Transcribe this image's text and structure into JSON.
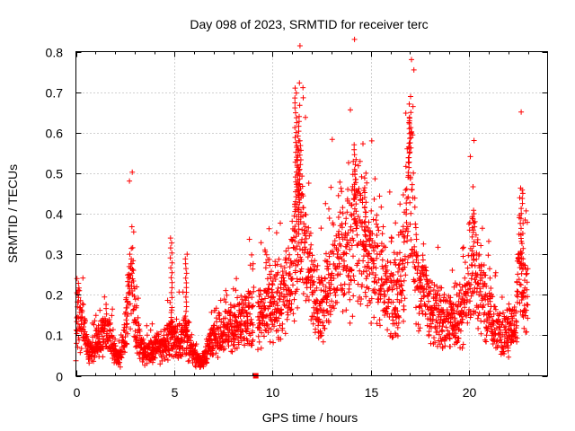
{
  "chart_data": {
    "type": "scatter",
    "title": "Day 098 of 2023, SRMTID for receiver terc",
    "xlabel": "GPS time / hours",
    "ylabel": "SRMTID / TECUs",
    "xlim": [
      0,
      24
    ],
    "ylim": [
      0,
      0.8
    ],
    "x_ticks": [
      0,
      5,
      10,
      15,
      20
    ],
    "y_ticks": [
      0,
      0.1,
      0.2,
      0.3,
      0.4,
      0.5,
      0.6,
      0.7,
      0.8
    ],
    "x_tick_labels": [
      "0",
      "5",
      "10",
      "15",
      "20"
    ],
    "y_tick_labels": [
      "0",
      "0.1",
      "0.2",
      "0.3",
      "0.4",
      "0.5",
      "0.6",
      "0.7",
      "0.8"
    ],
    "grid": true,
    "marker": "+",
    "series_color": "#ff0000",
    "data_gap_marker": {
      "x": 9.15,
      "y": 0.0
    },
    "envelope": [
      [
        0.0,
        0.07
      ],
      [
        0.1,
        0.17
      ],
      [
        0.2,
        0.12
      ],
      [
        0.35,
        0.15
      ],
      [
        0.5,
        0.09
      ],
      [
        0.7,
        0.06
      ],
      [
        1.0,
        0.07
      ],
      [
        1.3,
        0.1
      ],
      [
        1.6,
        0.12
      ],
      [
        1.9,
        0.07
      ],
      [
        2.1,
        0.04
      ],
      [
        2.3,
        0.05
      ],
      [
        2.5,
        0.1
      ],
      [
        2.7,
        0.2
      ],
      [
        2.85,
        0.28
      ],
      [
        3.0,
        0.12
      ],
      [
        3.3,
        0.07
      ],
      [
        3.6,
        0.06
      ],
      [
        3.9,
        0.06
      ],
      [
        4.2,
        0.07
      ],
      [
        4.5,
        0.07
      ],
      [
        4.8,
        0.1
      ],
      [
        5.0,
        0.08
      ],
      [
        5.3,
        0.09
      ],
      [
        5.6,
        0.1
      ],
      [
        5.9,
        0.06
      ],
      [
        6.2,
        0.04
      ],
      [
        6.4,
        0.03
      ],
      [
        6.7,
        0.06
      ],
      [
        7.0,
        0.09
      ],
      [
        7.3,
        0.1
      ],
      [
        7.6,
        0.11
      ],
      [
        7.9,
        0.12
      ],
      [
        8.2,
        0.13
      ],
      [
        8.5,
        0.13
      ],
      [
        8.8,
        0.15
      ],
      [
        9.1,
        0.15
      ],
      [
        9.4,
        0.14
      ],
      [
        9.7,
        0.17
      ],
      [
        10.0,
        0.17
      ],
      [
        10.3,
        0.19
      ],
      [
        10.6,
        0.2
      ],
      [
        10.9,
        0.22
      ],
      [
        11.2,
        0.32
      ],
      [
        11.4,
        0.38
      ],
      [
        11.7,
        0.3
      ],
      [
        12.0,
        0.24
      ],
      [
        12.3,
        0.19
      ],
      [
        12.6,
        0.18
      ],
      [
        12.9,
        0.23
      ],
      [
        13.2,
        0.26
      ],
      [
        13.5,
        0.31
      ],
      [
        13.8,
        0.28
      ],
      [
        14.1,
        0.36
      ],
      [
        14.4,
        0.37
      ],
      [
        14.7,
        0.32
      ],
      [
        15.0,
        0.25
      ],
      [
        15.3,
        0.27
      ],
      [
        15.6,
        0.24
      ],
      [
        15.9,
        0.2
      ],
      [
        16.2,
        0.18
      ],
      [
        16.5,
        0.22
      ],
      [
        16.8,
        0.31
      ],
      [
        17.0,
        0.55
      ],
      [
        17.2,
        0.33
      ],
      [
        17.5,
        0.21
      ],
      [
        17.8,
        0.19
      ],
      [
        18.1,
        0.16
      ],
      [
        18.4,
        0.15
      ],
      [
        18.7,
        0.14
      ],
      [
        19.0,
        0.14
      ],
      [
        19.3,
        0.13
      ],
      [
        19.6,
        0.15
      ],
      [
        19.9,
        0.2
      ],
      [
        20.1,
        0.27
      ],
      [
        20.3,
        0.3
      ],
      [
        20.6,
        0.22
      ],
      [
        20.9,
        0.17
      ],
      [
        21.2,
        0.13
      ],
      [
        21.5,
        0.11
      ],
      [
        21.8,
        0.09
      ],
      [
        22.1,
        0.11
      ],
      [
        22.4,
        0.13
      ],
      [
        22.6,
        0.33
      ],
      [
        22.8,
        0.2
      ],
      [
        23.0,
        0.2
      ]
    ],
    "spikes": [
      {
        "x": 0.1,
        "y": 0.24
      },
      {
        "x": 2.8,
        "y": 0.3
      },
      {
        "x": 4.85,
        "y": 0.34
      },
      {
        "x": 5.6,
        "y": 0.3
      },
      {
        "x": 11.2,
        "y": 0.71
      },
      {
        "x": 11.3,
        "y": 0.64
      },
      {
        "x": 11.4,
        "y": 0.58
      },
      {
        "x": 14.2,
        "y": 0.57
      },
      {
        "x": 14.75,
        "y": 0.5
      },
      {
        "x": 17.0,
        "y": 0.65
      },
      {
        "x": 16.95,
        "y": 0.61
      },
      {
        "x": 20.2,
        "y": 0.4
      },
      {
        "x": 22.7,
        "y": 0.45
      }
    ]
  }
}
